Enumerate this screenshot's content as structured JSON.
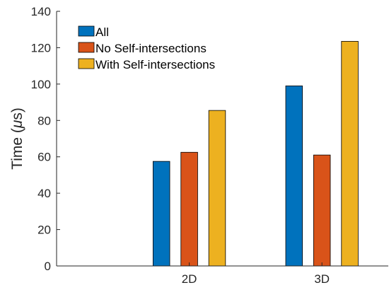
{
  "chart_data": {
    "type": "bar",
    "categories": [
      "2D",
      "3D"
    ],
    "series": [
      {
        "name": "All",
        "color": "#0072BD",
        "values": [
          57.5,
          99
        ]
      },
      {
        "name": "No Self-intersections",
        "color": "#D95319",
        "values": [
          62.5,
          61
        ]
      },
      {
        "name": "With Self-intersections",
        "color": "#EDB120",
        "values": [
          85.5,
          123.5
        ]
      }
    ],
    "ylabel_pre": "Time (",
    "ylabel_mu": "μ",
    "ylabel_post": "s)",
    "ylim": [
      0,
      140
    ],
    "yticks": [
      0,
      20,
      40,
      60,
      80,
      100,
      120,
      140
    ],
    "xlim": [
      0,
      2.5
    ],
    "x": [
      1,
      2
    ],
    "grid": false,
    "legend_position": "top-left"
  }
}
